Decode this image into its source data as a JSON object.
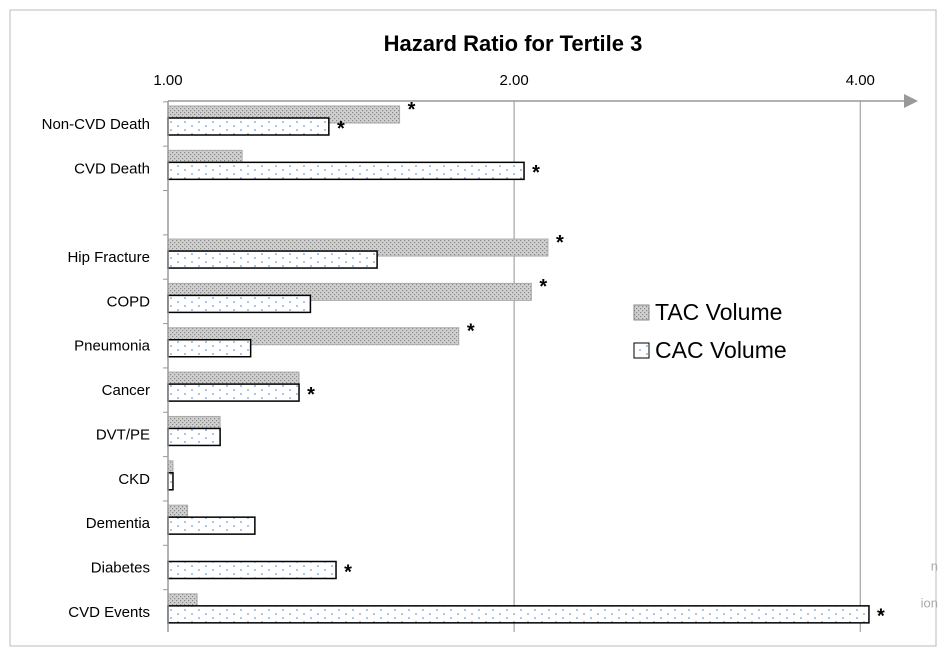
{
  "chart_data": {
    "type": "bar",
    "orientation": "horizontal",
    "title": "Hazard Ratio for Tertile 3",
    "categories": [
      "Non-CVD Death",
      "CVD Death",
      null,
      "Hip Fracture",
      "COPD",
      "Pneumonia",
      "Cancer",
      "DVT/PE",
      "CKD",
      "Dementia",
      "Diabetes",
      "CVD Events"
    ],
    "series": [
      {
        "name": "TAC Volume",
        "color": "#d0d0d0",
        "values": [
          1.59,
          1.16,
          null,
          2.14,
          2.07,
          1.79,
          1.3,
          1.11,
          1.01,
          1.04,
          1.0,
          1.06
        ],
        "significance": [
          "*",
          null,
          null,
          "*",
          "*",
          "*",
          null,
          null,
          null,
          null,
          null,
          null
        ]
      },
      {
        "name": "CAC Volume",
        "color": "#ffffff",
        "values": [
          1.38,
          2.04,
          null,
          1.52,
          1.33,
          1.18,
          1.3,
          1.11,
          1.01,
          1.19,
          1.4,
          4.07
        ],
        "significance": [
          "*",
          "*",
          null,
          null,
          null,
          null,
          "*",
          null,
          null,
          null,
          "*",
          "*"
        ]
      }
    ],
    "xscale": "log",
    "xlim": [
      1,
      4.49
    ],
    "xticks": [
      {
        "value": 1,
        "label": "1.00"
      },
      {
        "value": 2,
        "label": "2.00"
      },
      {
        "value": 4,
        "label": "4.00"
      }
    ],
    "grid": true,
    "legend": "right",
    "fragments": [
      "n",
      "ion"
    ]
  }
}
